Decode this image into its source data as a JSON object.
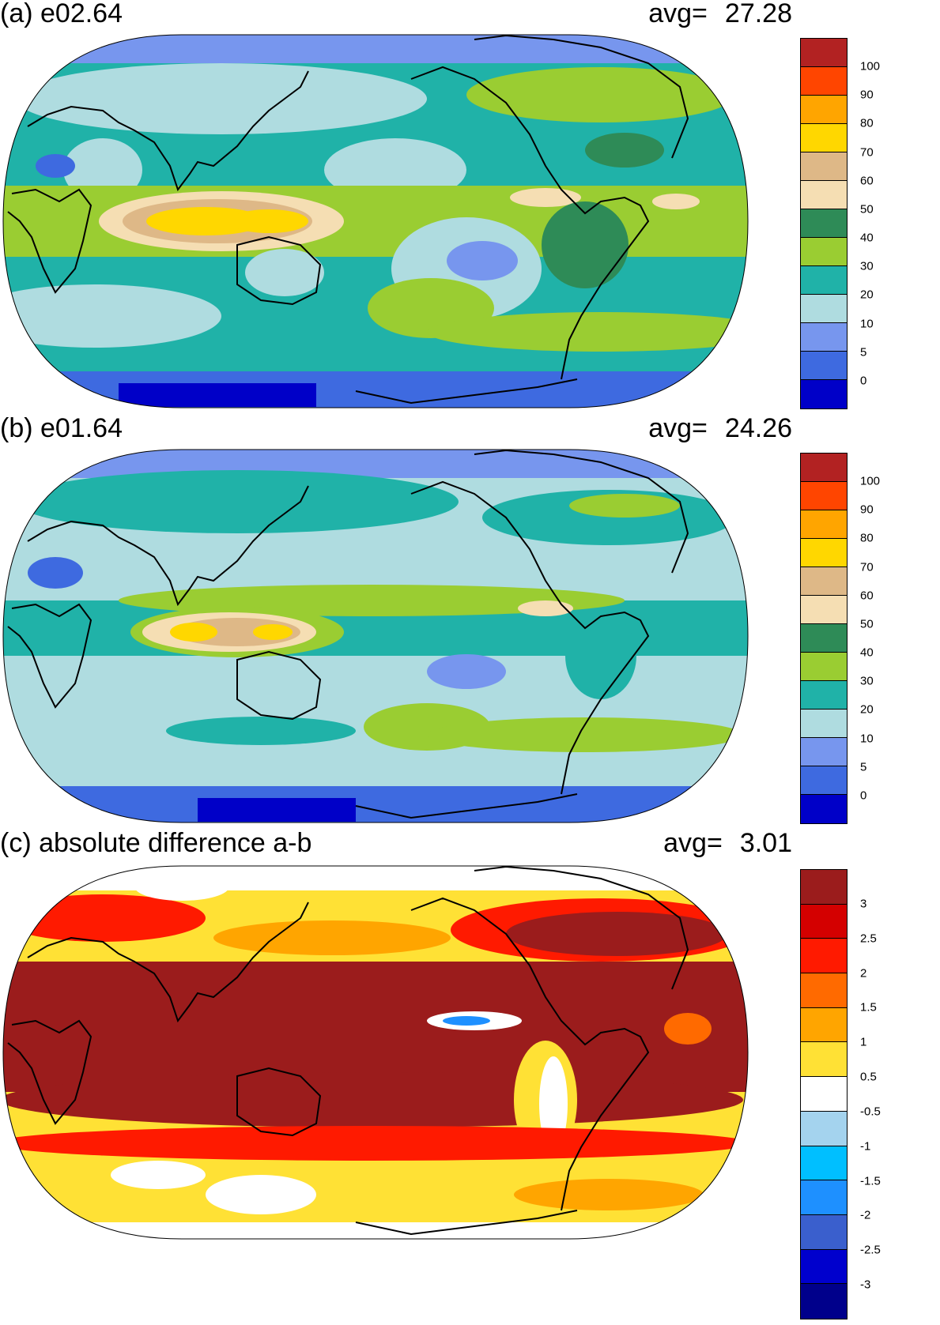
{
  "panels": [
    {
      "title": "(a) e02.64",
      "avg_label": "avg=",
      "avg_value": "27.28",
      "colorbar": {
        "colors": [
          "#0000c8",
          "#3e6ae0",
          "#7796ee",
          "#afdce0",
          "#20b2a8",
          "#9acd32",
          "#2e8b57",
          "#f5deb3",
          "#deb887",
          "#ffd700",
          "#ffa500",
          "#ff4500",
          "#b22222"
        ],
        "labels": [
          "0",
          "5",
          "10",
          "20",
          "30",
          "40",
          "50",
          "60",
          "70",
          "80",
          "90",
          "100"
        ]
      }
    },
    {
      "title": "(b) e01.64",
      "avg_label": "avg=",
      "avg_value": "24.26",
      "colorbar": {
        "colors": [
          "#0000c8",
          "#3e6ae0",
          "#7796ee",
          "#afdce0",
          "#20b2a8",
          "#9acd32",
          "#2e8b57",
          "#f5deb3",
          "#deb887",
          "#ffd700",
          "#ffa500",
          "#ff4500",
          "#b22222"
        ],
        "labels": [
          "0",
          "5",
          "10",
          "20",
          "30",
          "40",
          "50",
          "60",
          "70",
          "80",
          "90",
          "100"
        ]
      }
    },
    {
      "title": "(c) absolute difference a-b",
      "avg_label": "avg=",
      "avg_value": "3.01",
      "colorbar": {
        "colors": [
          "#00008b",
          "#0000cd",
          "#3a5fcd",
          "#1e90ff",
          "#00bfff",
          "#a4d3ee",
          "#ffffff",
          "#ffe135",
          "#ffa500",
          "#ff6a00",
          "#ff1a00",
          "#d40000",
          "#9b1c1c"
        ],
        "labels": [
          "-3",
          "-2.5",
          "-2",
          "-1.5",
          "-1",
          "-0.5",
          "0.5",
          "1",
          "1.5",
          "2",
          "2.5",
          "3"
        ]
      }
    }
  ]
}
